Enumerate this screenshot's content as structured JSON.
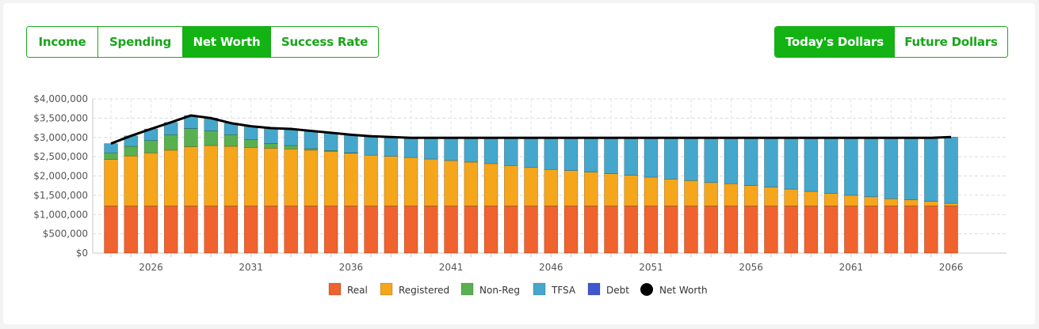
{
  "view_tabs": [
    {
      "label": "Income",
      "active": false
    },
    {
      "label": "Spending",
      "active": false
    },
    {
      "label": "Net Worth",
      "active": true
    },
    {
      "label": "Success Rate",
      "active": false
    }
  ],
  "dollar_tabs": [
    {
      "label": "Today's Dollars",
      "active": true
    },
    {
      "label": "Future Dollars",
      "active": false
    }
  ],
  "colors": {
    "accent": "#12b312",
    "Real": "#f0622e",
    "Registered": "#f5a61b",
    "Non-Reg": "#59b050",
    "TFSA": "#45a7cc",
    "Debt": "#3f57d0",
    "Net Worth": "#000000"
  },
  "chart_data": {
    "type": "bar",
    "stacked": true,
    "x": [
      2024,
      2025,
      2026,
      2027,
      2028,
      2029,
      2030,
      2031,
      2032,
      2033,
      2034,
      2035,
      2036,
      2037,
      2038,
      2039,
      2040,
      2041,
      2042,
      2043,
      2044,
      2045,
      2046,
      2047,
      2048,
      2049,
      2050,
      2051,
      2052,
      2053,
      2054,
      2055,
      2056,
      2057,
      2058,
      2059,
      2060,
      2061,
      2062,
      2063,
      2064,
      2065,
      2066
    ],
    "x_tick_labels": [
      "2026",
      "2031",
      "2036",
      "2041",
      "2046",
      "2051",
      "2056",
      "2061",
      "2066"
    ],
    "ylim": [
      0,
      4000000
    ],
    "y_tick_labels": [
      "$0",
      "$500,000",
      "$1,000,000",
      "$1,500,000",
      "$2,000,000",
      "$2,500,000",
      "$3,000,000",
      "$3,500,000",
      "$4,000,000"
    ],
    "grid": true,
    "legend_position": "bottom",
    "series": [
      {
        "name": "Real",
        "values": [
          1220000,
          1220000,
          1220000,
          1220000,
          1220000,
          1220000,
          1220000,
          1220000,
          1220000,
          1220000,
          1220000,
          1220000,
          1220000,
          1220000,
          1220000,
          1220000,
          1220000,
          1220000,
          1220000,
          1220000,
          1220000,
          1220000,
          1220000,
          1220000,
          1220000,
          1220000,
          1220000,
          1220000,
          1220000,
          1220000,
          1220000,
          1220000,
          1220000,
          1220000,
          1220000,
          1220000,
          1220000,
          1220000,
          1220000,
          1220000,
          1220000,
          1220000,
          1220000
        ]
      },
      {
        "name": "Registered",
        "values": [
          1210000,
          1300000,
          1380000,
          1450000,
          1540000,
          1570000,
          1550000,
          1520000,
          1500000,
          1480000,
          1450000,
          1420000,
          1370000,
          1320000,
          1290000,
          1260000,
          1220000,
          1180000,
          1140000,
          1100000,
          1050000,
          1000000,
          950000,
          920000,
          880000,
          840000,
          800000,
          750000,
          700000,
          660000,
          610000,
          580000,
          530000,
          490000,
          440000,
          380000,
          330000,
          280000,
          240000,
          190000,
          160000,
          120000,
          70000
        ]
      },
      {
        "name": "Non-Reg",
        "values": [
          170000,
          250000,
          320000,
          400000,
          470000,
          380000,
          300000,
          200000,
          120000,
          90000,
          40000,
          20000,
          10000,
          0,
          0,
          0,
          0,
          0,
          0,
          0,
          0,
          0,
          0,
          0,
          0,
          0,
          0,
          0,
          0,
          0,
          0,
          0,
          0,
          0,
          0,
          0,
          0,
          0,
          0,
          0,
          0,
          0,
          0
        ]
      },
      {
        "name": "TFSA",
        "values": [
          240000,
          270000,
          300000,
          320000,
          340000,
          330000,
          300000,
          350000,
          400000,
          430000,
          460000,
          460000,
          470000,
          490000,
          500000,
          510000,
          550000,
          590000,
          630000,
          670000,
          720000,
          770000,
          820000,
          850000,
          890000,
          930000,
          970000,
          1020000,
          1070000,
          1110000,
          1160000,
          1190000,
          1240000,
          1280000,
          1330000,
          1390000,
          1440000,
          1490000,
          1530000,
          1580000,
          1610000,
          1650000,
          1720000
        ]
      },
      {
        "name": "Debt",
        "values": [
          0,
          0,
          0,
          0,
          0,
          0,
          0,
          0,
          0,
          0,
          0,
          0,
          0,
          0,
          0,
          0,
          0,
          0,
          0,
          0,
          0,
          0,
          0,
          0,
          0,
          0,
          0,
          0,
          0,
          0,
          0,
          0,
          0,
          0,
          0,
          0,
          0,
          0,
          0,
          0,
          0,
          0,
          0
        ]
      },
      {
        "name": "Net Worth",
        "type": "line",
        "values": [
          2840000,
          3040000,
          3220000,
          3390000,
          3570000,
          3500000,
          3370000,
          3290000,
          3240000,
          3220000,
          3170000,
          3120000,
          3070000,
          3030000,
          3010000,
          2990000,
          2990000,
          2990000,
          2990000,
          2990000,
          2990000,
          2990000,
          2990000,
          2990000,
          2990000,
          2990000,
          2990000,
          2990000,
          2990000,
          2990000,
          2990000,
          2990000,
          2990000,
          2990000,
          2990000,
          2990000,
          2990000,
          2990000,
          2990000,
          2990000,
          2990000,
          2990000,
          3010000
        ]
      }
    ],
    "legend": [
      "Real",
      "Registered",
      "Non-Reg",
      "TFSA",
      "Debt",
      "Net Worth"
    ]
  }
}
